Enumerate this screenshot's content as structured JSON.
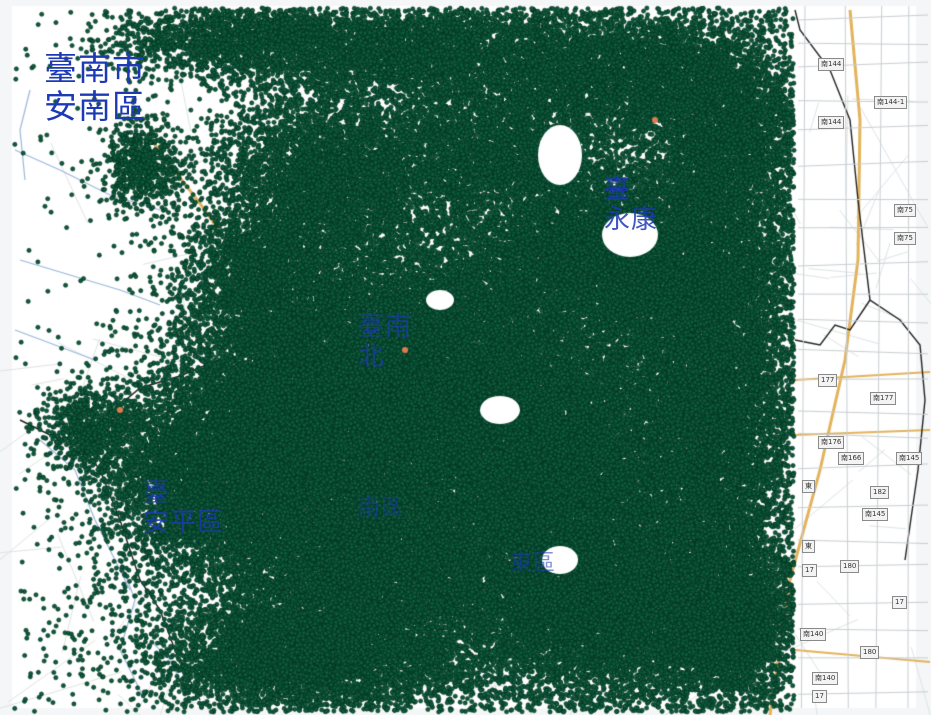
{
  "map": {
    "labels": {
      "annan_city": "臺南市",
      "annan_district": "安南區",
      "west_line1": "臺",
      "west_line2": "安平區",
      "mid_line1": "臺南",
      "mid_line2": "北",
      "east_line1": "臺",
      "east_line2": "永康",
      "low1": "南區",
      "low2": "東區"
    },
    "route_shields": [
      "南144",
      "南144-1",
      "南144",
      "南75",
      "南75",
      "177",
      "南177",
      "南176",
      "南166",
      "南145",
      "東",
      "182",
      "東",
      "南145",
      "180",
      "17",
      "17",
      "南140",
      "180",
      "南140",
      "17"
    ],
    "colors": {
      "point_fill": "#0e5a3c",
      "point_stroke": "#03301f",
      "label": "#1d39b5",
      "highway": "#e3b35b",
      "boundary": "#222222",
      "water": "#9eb8dc",
      "land": "#ffffff"
    }
  }
}
